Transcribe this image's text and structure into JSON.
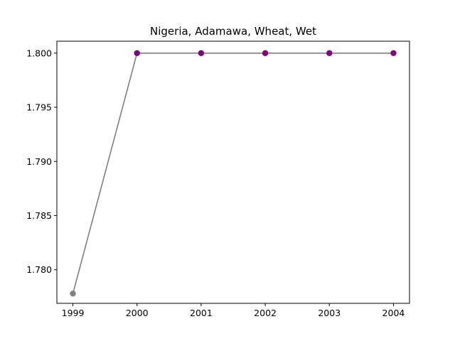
{
  "chart_data": {
    "type": "line",
    "title": "Nigeria, Adamawa, Wheat, Wet",
    "xlabel": "",
    "ylabel": "",
    "x": [
      1999,
      2000,
      2001,
      2002,
      2003,
      2004
    ],
    "x_tick_labels": [
      "1999",
      "2000",
      "2001",
      "2002",
      "2003",
      "2004"
    ],
    "y_ticks": [
      1.78,
      1.785,
      1.79,
      1.795,
      1.8
    ],
    "y_tick_labels": [
      "1.780",
      "1.785",
      "1.790",
      "1.795",
      "1.800"
    ],
    "xlim": [
      1998.75,
      2004.25
    ],
    "ylim": [
      1.7769,
      1.8011
    ],
    "grid": false,
    "series": [
      {
        "values": [
          1.7778,
          1.8,
          1.8,
          1.8,
          1.8,
          1.8
        ],
        "line_color": "#808080",
        "point_colors": [
          "#808080",
          "#800080",
          "#800080",
          "#800080",
          "#800080",
          "#800080"
        ]
      }
    ]
  }
}
